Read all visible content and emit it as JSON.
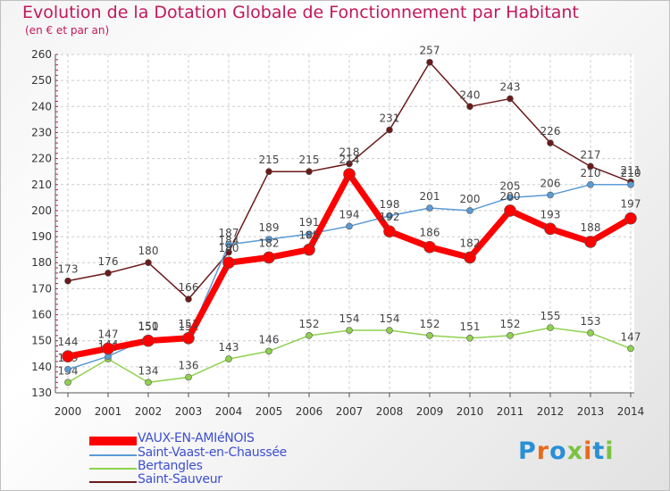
{
  "header": {
    "title": "Evolution de la Dotation Globale de Fonctionnement par Habitant",
    "subtitle": "(en € et par an)"
  },
  "chart_data": {
    "type": "line",
    "x": [
      "2000",
      "2001",
      "2002",
      "2003",
      "2004",
      "2005",
      "2006",
      "2007",
      "2008",
      "2009",
      "2010",
      "2011",
      "2012",
      "2013",
      "2014"
    ],
    "ylim": [
      130,
      260
    ],
    "yticks": [
      130,
      140,
      150,
      160,
      170,
      180,
      190,
      200,
      210,
      220,
      230,
      240,
      250,
      260
    ],
    "grid": true,
    "legend_position": "bottom-left",
    "series": [
      {
        "name": "Saint-Sauveur",
        "color": "#6b1a1a",
        "values": [
          173,
          176,
          180,
          166,
          184,
          215,
          215,
          218,
          231,
          257,
          240,
          243,
          226,
          217,
          211
        ]
      },
      {
        "name": "Bertangles",
        "color": "#8fd14f",
        "values": [
          134,
          143,
          134,
          136,
          143,
          146,
          152,
          154,
          154,
          152,
          151,
          152,
          155,
          153,
          147
        ]
      },
      {
        "name": "Saint-Vaast-en-Chaussée",
        "color": "#5a9bd5",
        "values": [
          139,
          144,
          151,
          151,
          187,
          189,
          191,
          194,
          198,
          201,
          200,
          205,
          206,
          210,
          210
        ]
      },
      {
        "name": "VAUX-EN-AMIéNOIS",
        "color": "#ff0000",
        "values": [
          144,
          147,
          150,
          151,
          180,
          182,
          185,
          214,
          192,
          186,
          182,
          200,
          193,
          188,
          197
        ]
      }
    ]
  },
  "logo": {
    "text": "Proxiti"
  }
}
